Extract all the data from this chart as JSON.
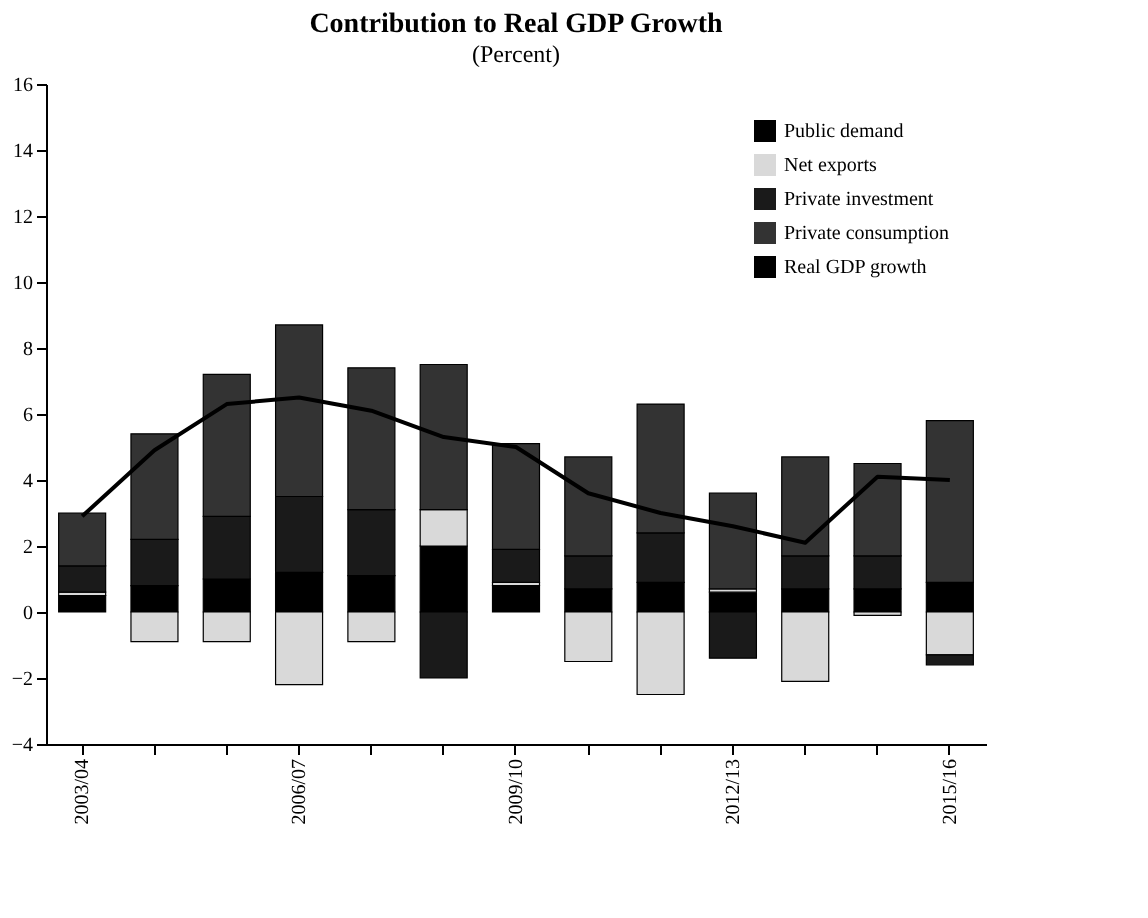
{
  "chart_data": {
    "type": "bar",
    "title": "Contribution to Real GDP Growth",
    "subtitle": "(Percent)",
    "categories": [
      "2003/04",
      null,
      null,
      "2006/07",
      null,
      null,
      "2009/10",
      null,
      null,
      "2012/13",
      null,
      null,
      "2015/16"
    ],
    "stacked": true,
    "series": [
      {
        "name": "Public demand",
        "color": "#000000",
        "values": [
          0.5,
          0.8,
          1.0,
          1.2,
          1.1,
          2.0,
          0.8,
          0.7,
          0.9,
          0.6,
          0.7,
          0.7,
          0.9
        ]
      },
      {
        "name": "Net exports",
        "color": "#d9d9d9",
        "values": [
          0.1,
          -0.9,
          -0.9,
          -2.2,
          -0.9,
          1.1,
          0.1,
          -1.5,
          -2.5,
          0.1,
          -2.1,
          -0.1,
          -1.3
        ]
      },
      {
        "name": "Private investment",
        "color": "#1a1a1a",
        "values": [
          0.8,
          1.4,
          1.9,
          2.3,
          2.0,
          -2.0,
          1.0,
          1.0,
          1.5,
          -1.4,
          1.0,
          1.0,
          -0.3
        ]
      },
      {
        "name": "Private consumption",
        "color": "#333333",
        "values": [
          1.6,
          3.2,
          4.3,
          5.2,
          4.3,
          4.4,
          3.2,
          3.0,
          3.9,
          2.9,
          3.0,
          2.8,
          4.9
        ]
      },
      {
        "name": "Real GDP growth",
        "type": "line",
        "color": "#000000",
        "values": [
          2.9,
          4.9,
          6.3,
          6.5,
          6.1,
          5.3,
          5.0,
          3.6,
          3.0,
          2.6,
          2.1,
          4.1,
          4.0
        ]
      }
    ],
    "ylim": [
      -4,
      16
    ],
    "yticks": [
      -4,
      -2,
      0,
      2,
      4,
      6,
      8,
      10,
      12,
      14,
      16
    ],
    "grid": false,
    "legend": "top right"
  }
}
